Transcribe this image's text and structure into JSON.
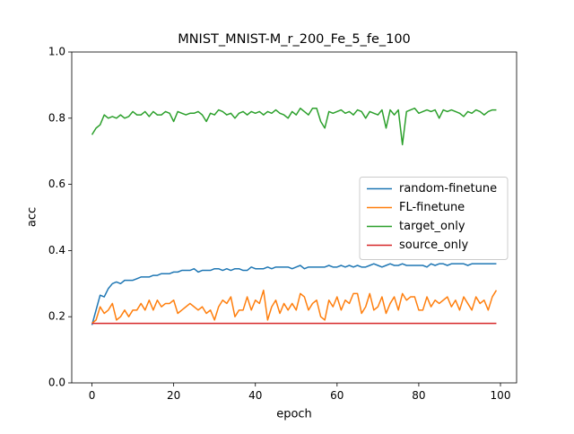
{
  "chart_data": {
    "type": "line",
    "title": "MNIST_MNIST-M_r_200_Fe_5_fe_100",
    "x_label": "epoch",
    "y_label": "acc",
    "x": [
      0,
      1,
      2,
      3,
      4,
      5,
      6,
      7,
      8,
      9,
      10,
      11,
      12,
      13,
      14,
      15,
      16,
      17,
      18,
      19,
      20,
      21,
      22,
      23,
      24,
      25,
      26,
      27,
      28,
      29,
      30,
      31,
      32,
      33,
      34,
      35,
      36,
      37,
      38,
      39,
      40,
      41,
      42,
      43,
      44,
      45,
      46,
      47,
      48,
      49,
      50,
      51,
      52,
      53,
      54,
      55,
      56,
      57,
      58,
      59,
      60,
      61,
      62,
      63,
      64,
      65,
      66,
      67,
      68,
      69,
      70,
      71,
      72,
      73,
      74,
      75,
      76,
      77,
      78,
      79,
      80,
      81,
      82,
      83,
      84,
      85,
      86,
      87,
      88,
      89,
      90,
      91,
      92,
      93,
      94,
      95,
      96,
      97,
      98,
      99
    ],
    "xlim": [
      -4.95,
      103.95
    ],
    "xticks": [
      0,
      20,
      40,
      60,
      80,
      100
    ],
    "ylim": [
      0,
      1
    ],
    "yticks": [
      {
        "value": 0,
        "label": "0.0"
      },
      0.2,
      0.4,
      0.6,
      0.8,
      {
        "value": 1,
        "label": "1.0"
      }
    ],
    "legend": "center right",
    "series": [
      {
        "name": "random-finetune",
        "color": "#1f77b4",
        "values": [
          0.175,
          0.22,
          0.265,
          0.26,
          0.285,
          0.3,
          0.305,
          0.3,
          0.31,
          0.31,
          0.31,
          0.315,
          0.32,
          0.32,
          0.32,
          0.325,
          0.325,
          0.33,
          0.33,
          0.33,
          0.335,
          0.335,
          0.34,
          0.34,
          0.34,
          0.345,
          0.335,
          0.34,
          0.34,
          0.34,
          0.345,
          0.345,
          0.34,
          0.345,
          0.34,
          0.345,
          0.345,
          0.34,
          0.34,
          0.35,
          0.345,
          0.345,
          0.345,
          0.35,
          0.345,
          0.35,
          0.35,
          0.35,
          0.35,
          0.345,
          0.35,
          0.355,
          0.345,
          0.35,
          0.35,
          0.35,
          0.35,
          0.35,
          0.355,
          0.35,
          0.35,
          0.355,
          0.35,
          0.355,
          0.35,
          0.355,
          0.35,
          0.35,
          0.355,
          0.36,
          0.355,
          0.35,
          0.355,
          0.36,
          0.355,
          0.355,
          0.36,
          0.355,
          0.355,
          0.355,
          0.355,
          0.355,
          0.35,
          0.36,
          0.355,
          0.36,
          0.36,
          0.355,
          0.36,
          0.36,
          0.36,
          0.36,
          0.355,
          0.36,
          0.36,
          0.36,
          0.36,
          0.36,
          0.36,
          0.36
        ]
      },
      {
        "name": "FL-finetune",
        "color": "#ff7f0e",
        "values": [
          0.18,
          0.19,
          0.23,
          0.21,
          0.22,
          0.24,
          0.19,
          0.2,
          0.22,
          0.2,
          0.22,
          0.22,
          0.24,
          0.22,
          0.25,
          0.22,
          0.25,
          0.23,
          0.24,
          0.24,
          0.25,
          0.21,
          0.22,
          0.23,
          0.24,
          0.23,
          0.22,
          0.23,
          0.21,
          0.22,
          0.19,
          0.23,
          0.25,
          0.24,
          0.26,
          0.2,
          0.22,
          0.22,
          0.26,
          0.22,
          0.25,
          0.24,
          0.28,
          0.19,
          0.23,
          0.25,
          0.21,
          0.24,
          0.22,
          0.24,
          0.22,
          0.27,
          0.26,
          0.22,
          0.24,
          0.25,
          0.2,
          0.19,
          0.25,
          0.23,
          0.26,
          0.22,
          0.25,
          0.24,
          0.27,
          0.27,
          0.21,
          0.23,
          0.27,
          0.22,
          0.23,
          0.26,
          0.21,
          0.24,
          0.26,
          0.22,
          0.27,
          0.25,
          0.26,
          0.26,
          0.22,
          0.22,
          0.26,
          0.23,
          0.25,
          0.24,
          0.25,
          0.26,
          0.23,
          0.25,
          0.22,
          0.26,
          0.24,
          0.22,
          0.26,
          0.24,
          0.25,
          0.22,
          0.26,
          0.28
        ]
      },
      {
        "name": "target_only",
        "color": "#2ca02c",
        "values": [
          0.75,
          0.77,
          0.78,
          0.81,
          0.8,
          0.805,
          0.8,
          0.81,
          0.8,
          0.805,
          0.82,
          0.81,
          0.81,
          0.82,
          0.805,
          0.82,
          0.81,
          0.81,
          0.82,
          0.815,
          0.79,
          0.82,
          0.815,
          0.81,
          0.815,
          0.815,
          0.82,
          0.81,
          0.79,
          0.815,
          0.81,
          0.825,
          0.82,
          0.81,
          0.815,
          0.8,
          0.815,
          0.82,
          0.81,
          0.82,
          0.815,
          0.82,
          0.81,
          0.82,
          0.815,
          0.825,
          0.815,
          0.81,
          0.8,
          0.82,
          0.81,
          0.83,
          0.82,
          0.81,
          0.83,
          0.83,
          0.79,
          0.77,
          0.82,
          0.815,
          0.82,
          0.825,
          0.815,
          0.82,
          0.81,
          0.825,
          0.82,
          0.8,
          0.82,
          0.815,
          0.81,
          0.825,
          0.77,
          0.825,
          0.81,
          0.825,
          0.72,
          0.82,
          0.825,
          0.83,
          0.815,
          0.82,
          0.825,
          0.82,
          0.825,
          0.8,
          0.825,
          0.82,
          0.825,
          0.82,
          0.815,
          0.805,
          0.82,
          0.815,
          0.825,
          0.82,
          0.81,
          0.82,
          0.825,
          0.825
        ]
      },
      {
        "name": "source_only",
        "color": "#d62728",
        "values": [
          0.18,
          0.18,
          0.18,
          0.18,
          0.18,
          0.18,
          0.18,
          0.18,
          0.18,
          0.18,
          0.18,
          0.18,
          0.18,
          0.18,
          0.18,
          0.18,
          0.18,
          0.18,
          0.18,
          0.18,
          0.18,
          0.18,
          0.18,
          0.18,
          0.18,
          0.18,
          0.18,
          0.18,
          0.18,
          0.18,
          0.18,
          0.18,
          0.18,
          0.18,
          0.18,
          0.18,
          0.18,
          0.18,
          0.18,
          0.18,
          0.18,
          0.18,
          0.18,
          0.18,
          0.18,
          0.18,
          0.18,
          0.18,
          0.18,
          0.18,
          0.18,
          0.18,
          0.18,
          0.18,
          0.18,
          0.18,
          0.18,
          0.18,
          0.18,
          0.18,
          0.18,
          0.18,
          0.18,
          0.18,
          0.18,
          0.18,
          0.18,
          0.18,
          0.18,
          0.18,
          0.18,
          0.18,
          0.18,
          0.18,
          0.18,
          0.18,
          0.18,
          0.18,
          0.18,
          0.18,
          0.18,
          0.18,
          0.18,
          0.18,
          0.18,
          0.18,
          0.18,
          0.18,
          0.18,
          0.18,
          0.18,
          0.18,
          0.18,
          0.18,
          0.18,
          0.18,
          0.18,
          0.18,
          0.18,
          0.18
        ]
      }
    ]
  }
}
